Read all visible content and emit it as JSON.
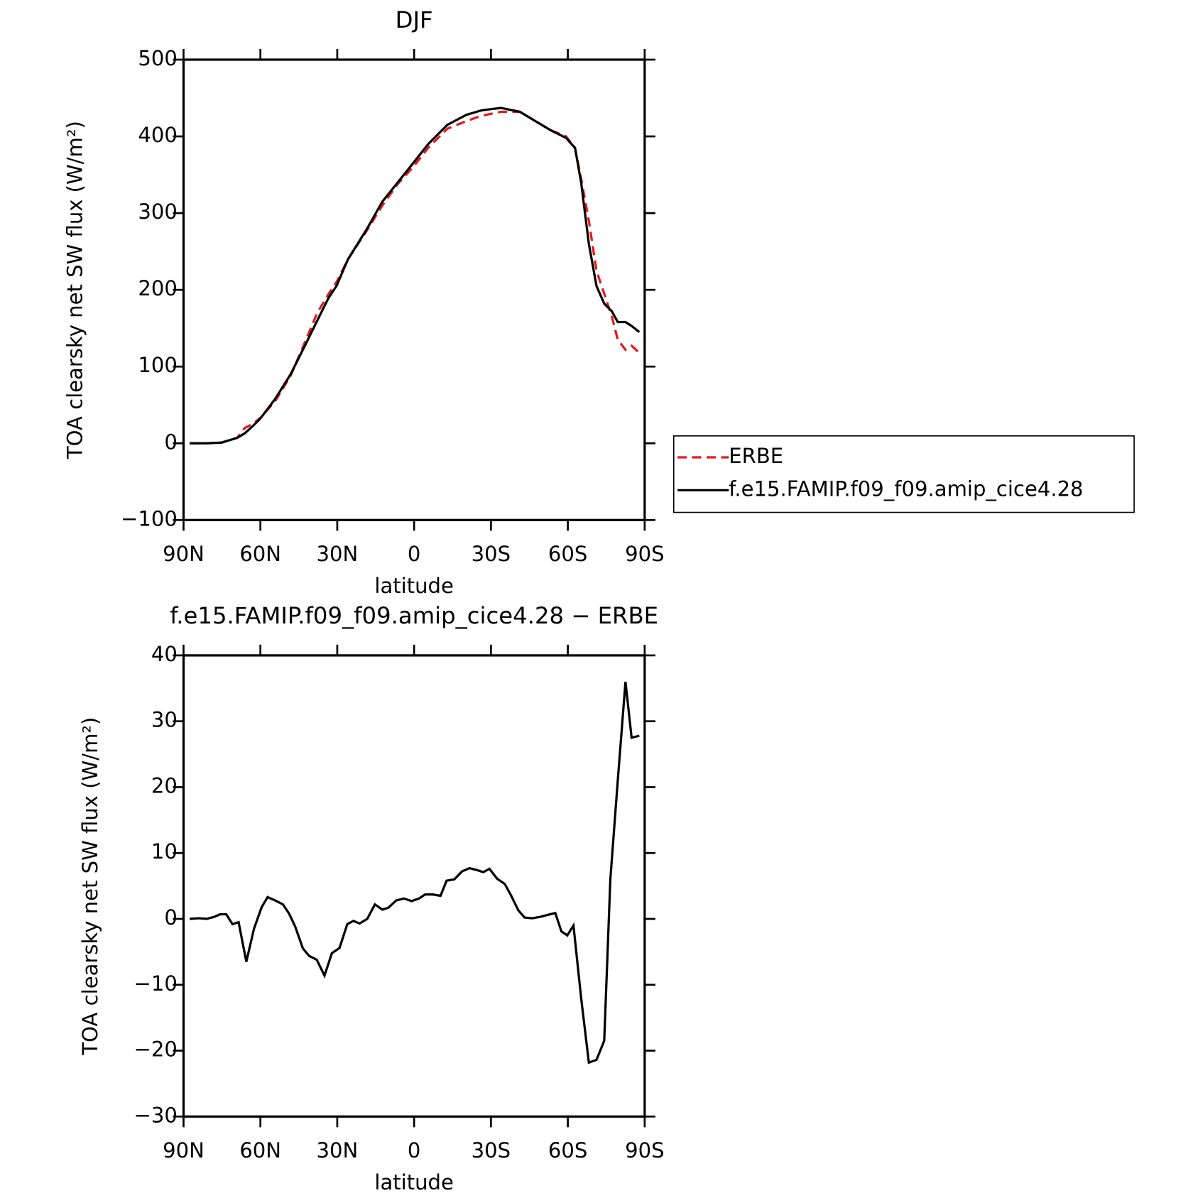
{
  "chart_data": [
    {
      "type": "line",
      "title": "DJF",
      "xlabel": "latitude",
      "ylabel": "TOA clearsky net SW flux (W/m²)",
      "x": [
        87.6,
        81.0,
        75.1,
        69.1,
        66.1,
        63.1,
        60.1,
        54.2,
        48.2,
        42.2,
        37.8,
        33.3,
        30.3,
        25.8,
        18.3,
        12.4,
        6.4,
        0.4,
        -5.5,
        -13.0,
        -20.4,
        -26.4,
        -33.9,
        -41.3,
        -47.3,
        -53.3,
        -59.3,
        -62.8,
        -65.2,
        -68.2,
        -71.2,
        -74.2,
        -77.2,
        -79.5,
        -82.5,
        -84.9,
        -87.9
      ],
      "series": [
        {
          "name": "ERBE",
          "color": "#e41a1c",
          "line_style": "dashed",
          "values": [
            0,
            0,
            1,
            7,
            20,
            25,
            33,
            55,
            88,
            135,
            170,
            195,
            210,
            240,
            278,
            310,
            338,
            360,
            385,
            410,
            420,
            427,
            432,
            432,
            420,
            408,
            400,
            385,
            345,
            290,
            225,
            195,
            165,
            135,
            122,
            127,
            118
          ]
        },
        {
          "name": "f.e15.FAMIP.f09_f09.amip_cice4.28",
          "color": "#000000",
          "line_style": "solid",
          "values": [
            0,
            0,
            1,
            7,
            13,
            22,
            32,
            58,
            90,
            130,
            160,
            190,
            205,
            240,
            280,
            315,
            340,
            365,
            390,
            415,
            428,
            434,
            437,
            432,
            420,
            408,
            398,
            385,
            340,
            260,
            205,
            182,
            172,
            158,
            158,
            153,
            145
          ]
        }
      ],
      "xlim": [
        90,
        -90
      ],
      "xticks": [
        {
          "value": 90,
          "label": "90N"
        },
        {
          "value": 60,
          "label": "60N"
        },
        {
          "value": 30,
          "label": "30N"
        },
        0,
        {
          "value": -30,
          "label": "30S"
        },
        {
          "value": -60,
          "label": "60S"
        },
        {
          "value": -90,
          "label": "90S"
        }
      ],
      "ylim": [
        -100,
        500
      ],
      "yticks": [
        {
          "value": -100,
          "label": "−100"
        },
        0,
        100,
        200,
        300,
        400,
        500
      ],
      "legend": "right"
    },
    {
      "type": "line",
      "title": "f.e15.FAMIP.f09_f09.amip_cice4.28 − ERBE",
      "xlabel": "latitude",
      "ylabel": "TOA clearsky net SW flux (W/m²)",
      "x": [
        87.6,
        84.0,
        81.0,
        78.1,
        75.7,
        73.3,
        70.9,
        68.5,
        65.5,
        62.5,
        59.5,
        57.2,
        54.2,
        51.2,
        48.8,
        46.4,
        43.4,
        41.0,
        38.0,
        35.0,
        32.1,
        29.1,
        26.1,
        23.7,
        21.3,
        18.3,
        15.3,
        12.4,
        10.0,
        7.0,
        4.0,
        1.0,
        -1.9,
        -4.3,
        -7.3,
        -10.3,
        -12.7,
        -15.7,
        -18.7,
        -21.6,
        -24.6,
        -27.0,
        -29.4,
        -32.4,
        -35.4,
        -37.8,
        -40.7,
        -43.1,
        -46.1,
        -49.1,
        -52.1,
        -55.1,
        -57.5,
        -59.8,
        -62.2,
        -65.2,
        -68.2,
        -71.2,
        -74.2,
        -76.6,
        -79.5,
        -82.5,
        -84.9,
        -87.9
      ],
      "series": [
        {
          "color": "#000000",
          "line_style": "solid",
          "values": [
            0,
            0.1,
            0,
            0.3,
            0.7,
            0.7,
            -0.8,
            -0.5,
            -6.5,
            -1.5,
            1.8,
            3.3,
            2.8,
            2.2,
            0.8,
            -1.2,
            -4.5,
            -5.6,
            -6.2,
            -8.6,
            -5.2,
            -4.4,
            -0.8,
            -0.3,
            -0.7,
            0,
            2.2,
            1.4,
            1.7,
            2.8,
            3.1,
            2.7,
            3.1,
            3.7,
            3.7,
            3.5,
            5.8,
            6.0,
            7.2,
            7.7,
            7.4,
            7.1,
            7.6,
            6.1,
            5.3,
            3.6,
            1.3,
            0.2,
            0.1,
            0.3,
            0.6,
            0.9,
            -1.9,
            -2.5,
            -1.0,
            -12,
            -21.8,
            -21.4,
            -18.5,
            6,
            21,
            36,
            27.5,
            27.8
          ]
        }
      ],
      "xlim": [
        90,
        -90
      ],
      "xticks": [
        {
          "value": 90,
          "label": "90N"
        },
        {
          "value": 60,
          "label": "60N"
        },
        {
          "value": 30,
          "label": "30N"
        },
        0,
        {
          "value": -30,
          "label": "30S"
        },
        {
          "value": -60,
          "label": "60S"
        },
        {
          "value": -90,
          "label": "90S"
        }
      ],
      "ylim": [
        -30,
        40
      ],
      "yticks": [
        {
          "value": -30,
          "label": "−30"
        },
        {
          "value": -20,
          "label": "−20"
        },
        {
          "value": -10,
          "label": "−10"
        },
        0,
        10,
        20,
        30,
        40
      ]
    }
  ]
}
